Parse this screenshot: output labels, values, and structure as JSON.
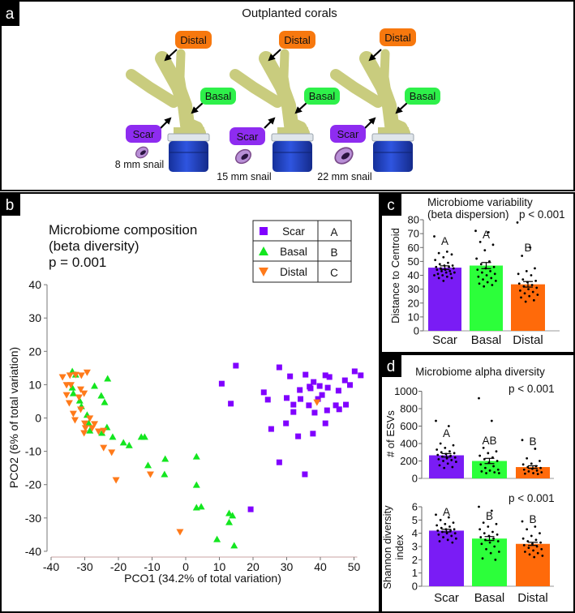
{
  "panel_a": {
    "label": "a",
    "title": "Outplanted corals",
    "corals": [
      {
        "distal": "Distal",
        "basal": "Basal",
        "scar": "Scar",
        "snail": "8 mm snail"
      },
      {
        "distal": "Distal",
        "basal": "Basal",
        "scar": "Scar",
        "snail": "15 mm snail"
      },
      {
        "distal": "Distal",
        "basal": "Basal",
        "scar": "Scar",
        "snail": "22 mm snail"
      }
    ],
    "colors": {
      "distal": "#f7780e",
      "basal": "#2ef04a",
      "scar": "#8e2cf0",
      "coral": "#c9cc7e",
      "pot": "#1f3fc4"
    }
  },
  "chart_data": [
    {
      "panel": "b",
      "type": "scatter",
      "title": [
        "Microbiome composition",
        "(beta diversity)",
        "p = 0.001"
      ],
      "xlabel": "PCO1 (34.2% of total variation)",
      "ylabel": "PCO2 (6% of total variation)",
      "xlim": [
        -40,
        50
      ],
      "ylim": [
        -40,
        40
      ],
      "xticks": [
        -40,
        -30,
        -20,
        -10,
        0,
        10,
        20,
        30,
        40,
        50
      ],
      "yticks": [
        40,
        30,
        20,
        10,
        0,
        -10,
        -20,
        -30,
        -40
      ],
      "legend": {
        "placement": "top-right",
        "entries": [
          {
            "name": "Scar",
            "group": "A",
            "marker": "square",
            "color": "#8000ff"
          },
          {
            "name": "Basal",
            "group": "B",
            "marker": "triangle-up",
            "color": "#13e61f"
          },
          {
            "name": "Distal",
            "group": "C",
            "marker": "triangle-down",
            "color": "#ff7a1a"
          }
        ]
      },
      "series": [
        {
          "name": "Scar",
          "points": [
            [
              27.8,
              15.2
            ],
            [
              31.0,
              12.5
            ],
            [
              35.6,
              13.0
            ],
            [
              41.5,
              12.8
            ],
            [
              42.7,
              12.3
            ],
            [
              50.2,
              14.0
            ],
            [
              52.0,
              12.8
            ],
            [
              47.3,
              11.3
            ],
            [
              48.8,
              9.9
            ],
            [
              38.0,
              10.8
            ],
            [
              36.8,
              9.4
            ],
            [
              37.1,
              8.9
            ],
            [
              39.8,
              9.6
            ],
            [
              42.2,
              9.1
            ],
            [
              45.4,
              8.2
            ],
            [
              33.9,
              8.4
            ],
            [
              23.2,
              7.7
            ],
            [
              24.4,
              5.5
            ],
            [
              30.0,
              6.0
            ],
            [
              34.1,
              5.7
            ],
            [
              40.5,
              6.9
            ],
            [
              39.3,
              5.7
            ],
            [
              32.0,
              4.0
            ],
            [
              36.6,
              3.8
            ],
            [
              44.6,
              3.8
            ],
            [
              47.6,
              4.0
            ],
            [
              45.6,
              2.6
            ],
            [
              42.0,
              2.3
            ],
            [
              32.0,
              1.8
            ],
            [
              38.3,
              1.6
            ],
            [
              29.8,
              -1.6
            ],
            [
              41.5,
              -1.6
            ],
            [
              25.4,
              -3.3
            ],
            [
              33.4,
              -5.5
            ],
            [
              37.8,
              -4.7
            ],
            [
              27.8,
              -13.3
            ],
            [
              35.4,
              -16.9
            ],
            [
              19.3,
              -27.4
            ],
            [
              14.9,
              15.7
            ],
            [
              10.7,
              10.3
            ],
            [
              13.4,
              4.3
            ]
          ]
        },
        {
          "name": "Basal",
          "points": [
            [
              -33.7,
              14.0
            ],
            [
              -32.7,
              13.0
            ],
            [
              -23.2,
              11.8
            ],
            [
              -27.1,
              9.6
            ],
            [
              -33.7,
              9.1
            ],
            [
              -33.4,
              7.4
            ],
            [
              -25.1,
              6.7
            ],
            [
              -24.1,
              4.7
            ],
            [
              -31.5,
              5.2
            ],
            [
              -31.0,
              3.5
            ],
            [
              -29.3,
              0.9
            ],
            [
              -28.8,
              -1.6
            ],
            [
              -28.5,
              -3.8
            ],
            [
              -23.4,
              -2.8
            ],
            [
              -24.9,
              -4.5
            ],
            [
              -21.7,
              -5.7
            ],
            [
              -18.5,
              -7.4
            ],
            [
              -16.8,
              -8.2
            ],
            [
              -13.2,
              -5.7
            ],
            [
              -12.2,
              -5.7
            ],
            [
              -6.1,
              -12.3
            ],
            [
              3.2,
              -11.6
            ],
            [
              -11.2,
              -14.2
            ],
            [
              -6.3,
              -16.9
            ],
            [
              3.2,
              -20.1
            ],
            [
              3.2,
              -26.9
            ],
            [
              4.6,
              -26.6
            ],
            [
              12.9,
              -28.6
            ],
            [
              13.9,
              -29.3
            ],
            [
              12.9,
              -31.3
            ],
            [
              9.3,
              -36.4
            ],
            [
              14.4,
              -38.3
            ]
          ]
        },
        {
          "name": "Distal",
          "points": [
            [
              -29.3,
              13.7
            ],
            [
              -36.6,
              12.3
            ],
            [
              -34.4,
              12.8
            ],
            [
              -32.7,
              13.0
            ],
            [
              -31.0,
              12.8
            ],
            [
              -35.4,
              9.9
            ],
            [
              -34.1,
              9.9
            ],
            [
              -31.2,
              8.6
            ],
            [
              -30.2,
              7.4
            ],
            [
              -35.4,
              6.9
            ],
            [
              -31.7,
              6.2
            ],
            [
              -34.6,
              4.5
            ],
            [
              -31.2,
              2.6
            ],
            [
              -33.4,
              1.3
            ],
            [
              -32.9,
              -0.6
            ],
            [
              -28.5,
              -0.1
            ],
            [
              -30.0,
              -1.6
            ],
            [
              -27.1,
              -1.8
            ],
            [
              -27.8,
              -3.0
            ],
            [
              -29.8,
              -3.0
            ],
            [
              -30.2,
              -4.5
            ],
            [
              -25.9,
              -4.0
            ],
            [
              -24.4,
              -3.8
            ],
            [
              -24.4,
              -8.9
            ],
            [
              -22.0,
              -10.3
            ],
            [
              -10.5,
              -16.9
            ],
            [
              -20.7,
              -18.6
            ],
            [
              -1.7,
              -34.2
            ],
            [
              39.0,
              4.7
            ]
          ]
        }
      ]
    },
    {
      "panel": "c",
      "type": "bar",
      "title": [
        "Microbiome variability",
        "(beta dispersion)"
      ],
      "pvalue": "p < 0.001",
      "ylabel": "Distance to Centroid",
      "ylim": [
        0,
        80
      ],
      "yticks": [
        0,
        10,
        20,
        30,
        40,
        50,
        60,
        70,
        80
      ],
      "categories": [
        "Scar",
        "Basal",
        "Distal"
      ],
      "values": [
        45.5,
        47,
        33.5
      ],
      "sem": [
        1.3,
        2.2,
        2.0
      ],
      "letters": [
        "A",
        "A",
        "B"
      ],
      "colors": [
        "#7a1cf5",
        "#2cff3a",
        "#ff6a0a"
      ],
      "points": [
        [
          68,
          57,
          56,
          55,
          53,
          51,
          49,
          48,
          47,
          47,
          46,
          46,
          45,
          45,
          44,
          44,
          43,
          43,
          42,
          42,
          41,
          41,
          40,
          40,
          39,
          38,
          38,
          36
        ],
        [
          72,
          71,
          64,
          62,
          58,
          52,
          50,
          48,
          46,
          45,
          44,
          43,
          42,
          41,
          40,
          39,
          38,
          37,
          36,
          35,
          34,
          33,
          32
        ],
        [
          78,
          60,
          54,
          45,
          43,
          41,
          40,
          37,
          36,
          35,
          34,
          33,
          32,
          31,
          30,
          29,
          28,
          27,
          26,
          25,
          24,
          22,
          21
        ]
      ]
    },
    {
      "panel": "d",
      "type": "bar",
      "title": "Microbiome alpha diversity",
      "pvalue": "p < 0.001",
      "ylabel": "# of ESVs",
      "ylim": [
        0,
        1000
      ],
      "yticks": [
        0,
        200,
        400,
        600,
        800,
        1000
      ],
      "categories": [
        "Scar",
        "Basal",
        "Distal"
      ],
      "values": [
        265,
        200,
        130
      ],
      "sem": [
        20,
        30,
        15
      ],
      "letters": [
        "A",
        "AB",
        "B"
      ],
      "colors": [
        "#7a1cf5",
        "#2cff3a",
        "#ff6a0a"
      ],
      "points": [
        [
          660,
          600,
          400,
          380,
          350,
          330,
          310,
          300,
          290,
          280,
          270,
          260,
          250,
          240,
          230,
          220,
          210,
          200,
          190,
          170,
          150,
          130,
          120
        ],
        [
          920,
          660,
          350,
          310,
          290,
          260,
          240,
          220,
          200,
          180,
          160,
          140,
          120,
          100,
          90,
          80,
          70,
          60,
          60
        ],
        [
          440,
          340,
          230,
          200,
          170,
          160,
          140,
          130,
          120,
          110,
          100,
          90,
          80,
          70,
          60,
          55,
          50
        ]
      ]
    },
    {
      "panel": "d",
      "type": "bar",
      "pvalue": "p < 0.001",
      "ylabel": [
        "Shannon diversity",
        "index"
      ],
      "ylim": [
        0,
        6
      ],
      "yticks": [
        0,
        1,
        2,
        3,
        4,
        5,
        6
      ],
      "categories": [
        "Scar",
        "Basal",
        "Distal"
      ],
      "values": [
        4.2,
        3.6,
        3.2
      ],
      "sem": [
        0.1,
        0.15,
        0.12
      ],
      "letters": [
        "A",
        "B",
        "B"
      ],
      "colors": [
        "#7a1cf5",
        "#2cff3a",
        "#ff6a0a"
      ],
      "points": [
        [
          5.4,
          5.2,
          5.0,
          4.8,
          4.7,
          4.6,
          4.5,
          4.4,
          4.3,
          4.3,
          4.2,
          4.2,
          4.1,
          4.0,
          4.0,
          3.9,
          3.8,
          3.7,
          3.6,
          3.5,
          3.4,
          3.3
        ],
        [
          6.0,
          5.7,
          4.8,
          4.7,
          4.5,
          4.3,
          4.1,
          4.0,
          3.9,
          3.8,
          3.7,
          3.6,
          3.5,
          3.4,
          3.3,
          3.2,
          3.0,
          2.8,
          2.6,
          2.5,
          2.1,
          2.0
        ],
        [
          4.9,
          4.5,
          4.3,
          4.0,
          3.8,
          3.6,
          3.5,
          3.4,
          3.3,
          3.2,
          3.1,
          3.0,
          2.9,
          2.8,
          2.7,
          2.6,
          2.5,
          2.4,
          2.3,
          2.2
        ]
      ]
    }
  ],
  "panel_labels": {
    "b": "b",
    "c": "c",
    "d": "d"
  }
}
